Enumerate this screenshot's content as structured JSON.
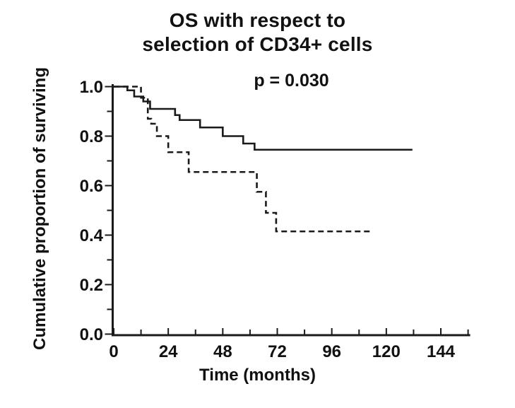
{
  "figure": {
    "title_line1": "OS with respect to",
    "title_line2": "selection of CD34+ cells",
    "annotation": "p = 0.030",
    "xlabel": "Time (months)",
    "ylabel": "Cumulative proportion of surviving"
  },
  "chart_data": {
    "type": "line",
    "subtype": "kaplan-meier-step-curves",
    "title": "OS with respect to selection of CD34+ cells",
    "annotation": "p = 0.030",
    "xlabel": "Time (months)",
    "ylabel": "Cumulative proportion of surviving",
    "xlim": [
      0,
      156
    ],
    "ylim": [
      0.0,
      1.0
    ],
    "grid": false,
    "legend": "none",
    "line_color": "#1a1a1a",
    "x_major_ticks": [
      0,
      24,
      48,
      72,
      96,
      120,
      144
    ],
    "x_tick_labels": [
      "0",
      "24",
      "48",
      "72",
      "96",
      "120",
      "144"
    ],
    "x_minor_ticks": [
      12,
      36,
      60,
      84,
      108,
      132,
      156
    ],
    "y_major_ticks": [
      1.0,
      0.8,
      0.6,
      0.4,
      0.2,
      0.0
    ],
    "y_tick_labels": [
      "1.0",
      "0.8",
      "0.6",
      "0.4",
      "0.2",
      "0.0"
    ],
    "y_minor_ticks": [
      0.9,
      0.7,
      0.5,
      0.3,
      0.1
    ],
    "series": [
      {
        "name": "solid-curve",
        "line_style": "solid",
        "steps": [
          [
            0,
            1.0
          ],
          [
            6,
            0.985
          ],
          [
            9,
            0.96
          ],
          [
            13,
            0.94
          ],
          [
            16,
            0.91
          ],
          [
            27,
            0.885
          ],
          [
            29,
            0.865
          ],
          [
            38,
            0.835
          ],
          [
            48,
            0.8
          ],
          [
            57,
            0.77
          ],
          [
            62,
            0.745
          ]
        ],
        "end_time": 131.5,
        "final_value": 0.745
      },
      {
        "name": "dashed-curve",
        "line_style": "dashed",
        "steps": [
          [
            0,
            1.0
          ],
          [
            12,
            0.955
          ],
          [
            15,
            0.87
          ],
          [
            16.5,
            0.85
          ],
          [
            19,
            0.8
          ],
          [
            24,
            0.735
          ],
          [
            33,
            0.655
          ],
          [
            63,
            0.575
          ],
          [
            67,
            0.49
          ],
          [
            71.5,
            0.415
          ]
        ],
        "end_time": 114,
        "final_value": 0.415
      }
    ]
  }
}
